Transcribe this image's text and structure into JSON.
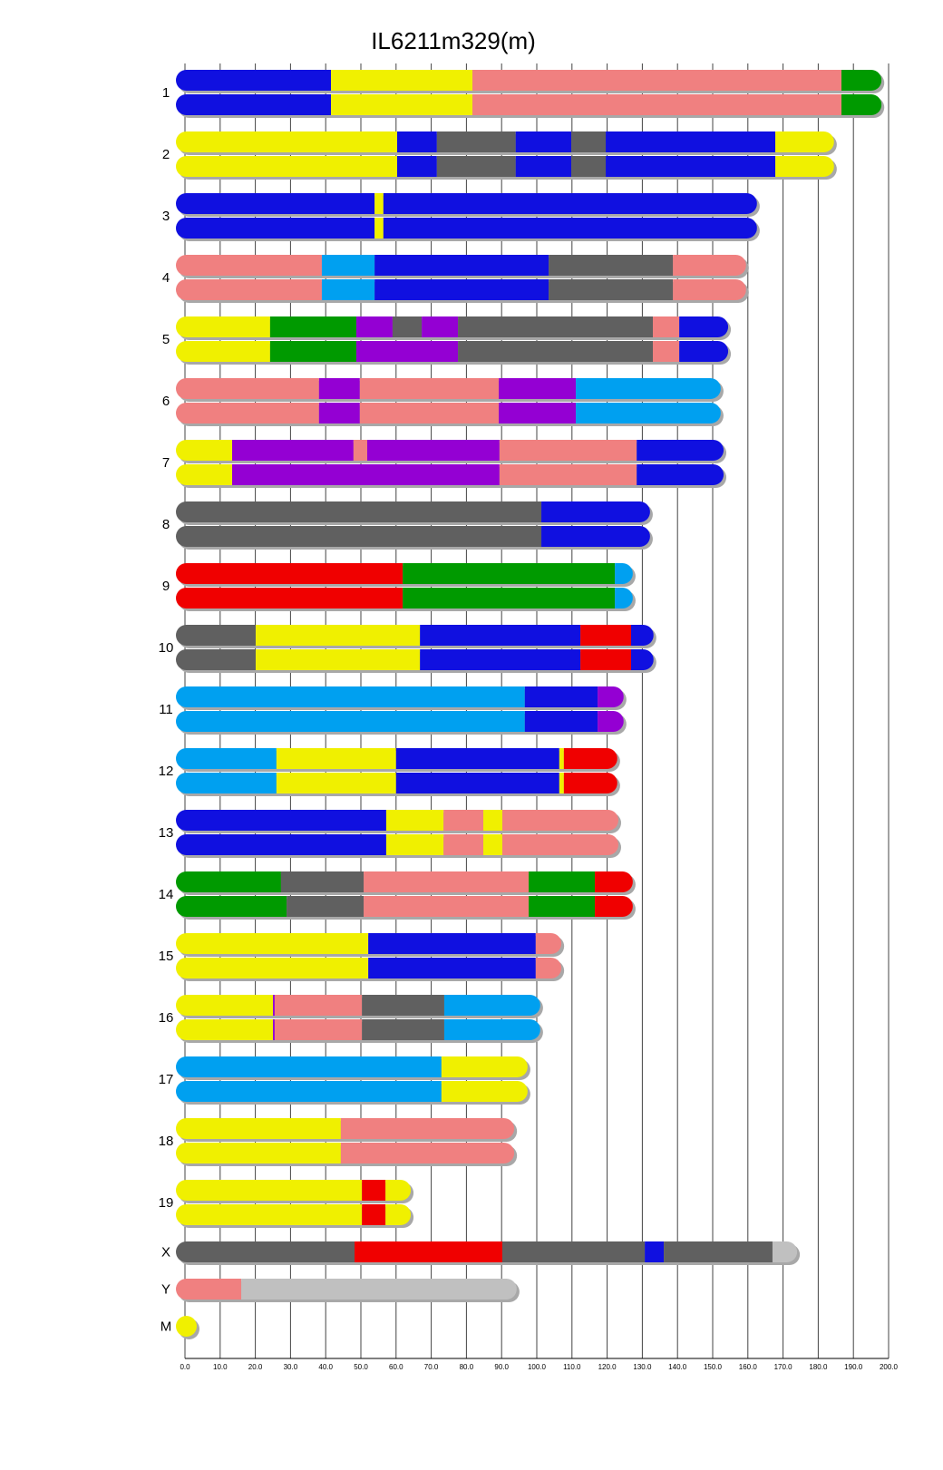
{
  "chart_data": {
    "type": "chromosome-painting",
    "title": "IL6211m329(m)",
    "xlim": [
      0,
      200
    ],
    "xticks": [
      {
        "value": 0,
        "label": "0.0"
      },
      {
        "value": 10,
        "label": "10.0"
      },
      {
        "value": 20,
        "label": "20.0"
      },
      {
        "value": 30,
        "label": "30.0"
      },
      {
        "value": 40,
        "label": "40.0"
      },
      {
        "value": 50,
        "label": "50.0"
      },
      {
        "value": 60,
        "label": "60.0"
      },
      {
        "value": 70,
        "label": "70.0"
      },
      {
        "value": 80,
        "label": "80.0"
      },
      {
        "value": 90,
        "label": "90.0"
      },
      {
        "value": 100,
        "label": "100.0"
      },
      {
        "value": 110,
        "label": "110.0"
      },
      {
        "value": 120,
        "label": "120.0"
      },
      {
        "value": 130,
        "label": "130.0"
      },
      {
        "value": 140,
        "label": "140.0"
      },
      {
        "value": 150,
        "label": "150.0"
      },
      {
        "value": 160,
        "label": "160.0"
      },
      {
        "value": 170,
        "label": "170.0"
      },
      {
        "value": 180,
        "label": "180.0"
      },
      {
        "value": 190,
        "label": "190.0"
      },
      {
        "value": 200,
        "label": "200.0"
      }
    ],
    "grid": true,
    "chromosomes": [
      {
        "name": "1",
        "haplotypes": [
          [
            [
              0,
              41.5,
              "#1010e0"
            ],
            [
              41.5,
              81.7,
              "#f0f000"
            ],
            [
              81.7,
              186.6,
              "#f08080"
            ],
            [
              186.6,
              198,
              "#009a00"
            ]
          ],
          [
            [
              0,
              41.5,
              "#1010e0"
            ],
            [
              41.5,
              81.7,
              "#f0f000"
            ],
            [
              81.7,
              186.6,
              "#f08080"
            ],
            [
              186.6,
              198,
              "#009a00"
            ]
          ]
        ]
      },
      {
        "name": "2",
        "haplotypes": [
          [
            [
              0,
              60.3,
              "#f0f000"
            ],
            [
              60.3,
              71.6,
              "#1010e0"
            ],
            [
              71.6,
              94,
              "#606060"
            ],
            [
              94,
              109.8,
              "#1010e0"
            ],
            [
              109.8,
              119.6,
              "#606060"
            ],
            [
              119.6,
              167.8,
              "#1010e0"
            ],
            [
              167.8,
              184.5,
              "#f0f000"
            ]
          ],
          [
            [
              0,
              60.3,
              "#f0f000"
            ],
            [
              60.3,
              71.6,
              "#1010e0"
            ],
            [
              71.6,
              94,
              "#606060"
            ],
            [
              94,
              109.8,
              "#1010e0"
            ],
            [
              109.8,
              119.6,
              "#606060"
            ],
            [
              119.6,
              167.8,
              "#1010e0"
            ],
            [
              167.8,
              184.5,
              "#f0f000"
            ]
          ]
        ]
      },
      {
        "name": "3",
        "haplotypes": [
          [
            [
              0,
              53.9,
              "#1010e0"
            ],
            [
              53.9,
              56.4,
              "#f0f000"
            ],
            [
              56.4,
              162.6,
              "#1010e0"
            ]
          ],
          [
            [
              0,
              53.9,
              "#1010e0"
            ],
            [
              53.9,
              56.4,
              "#f0f000"
            ],
            [
              56.4,
              162.6,
              "#1010e0"
            ]
          ]
        ]
      },
      {
        "name": "4",
        "haplotypes": [
          [
            [
              0,
              38.9,
              "#f08080"
            ],
            [
              38.9,
              53.9,
              "#00a0f0"
            ],
            [
              53.9,
              103.4,
              "#1010e0"
            ],
            [
              103.4,
              138.7,
              "#606060"
            ],
            [
              138.7,
              159.5,
              "#f08080"
            ]
          ],
          [
            [
              0,
              38.9,
              "#f08080"
            ],
            [
              38.9,
              53.9,
              "#00a0f0"
            ],
            [
              53.9,
              103.4,
              "#1010e0"
            ],
            [
              103.4,
              138.7,
              "#606060"
            ],
            [
              138.7,
              159.5,
              "#f08080"
            ]
          ]
        ]
      },
      {
        "name": "5",
        "haplotypes": [
          [
            [
              0,
              24.2,
              "#f0f000"
            ],
            [
              24.2,
              48.7,
              "#009a00"
            ],
            [
              48.7,
              59,
              "#9400d3"
            ],
            [
              59,
              67.3,
              "#606060"
            ],
            [
              67.3,
              77.6,
              "#9400d3"
            ],
            [
              77.6,
              133,
              "#606060"
            ],
            [
              133,
              140.5,
              "#f08080"
            ],
            [
              140.5,
              154.4,
              "#1010e0"
            ]
          ],
          [
            [
              0,
              24.2,
              "#f0f000"
            ],
            [
              24.2,
              48.7,
              "#009a00"
            ],
            [
              48.7,
              77.6,
              "#9400d3"
            ],
            [
              77.6,
              133,
              "#606060"
            ],
            [
              133,
              140.5,
              "#f08080"
            ],
            [
              140.5,
              154.4,
              "#1010e0"
            ]
          ]
        ]
      },
      {
        "name": "6",
        "haplotypes": [
          [
            [
              0,
              38.1,
              "#f08080"
            ],
            [
              38.1,
              49.7,
              "#9400d3"
            ],
            [
              49.7,
              89.2,
              "#f08080"
            ],
            [
              89.2,
              111.1,
              "#9400d3"
            ],
            [
              111.1,
              152.3,
              "#00a0f0"
            ]
          ],
          [
            [
              0,
              38.1,
              "#f08080"
            ],
            [
              38.1,
              49.7,
              "#9400d3"
            ],
            [
              49.7,
              89.2,
              "#f08080"
            ],
            [
              89.2,
              111.1,
              "#9400d3"
            ],
            [
              111.1,
              152.3,
              "#00a0f0"
            ]
          ]
        ]
      },
      {
        "name": "7",
        "haplotypes": [
          [
            [
              0,
              13.4,
              "#f0f000"
            ],
            [
              13.4,
              47.9,
              "#9400d3"
            ],
            [
              47.9,
              51.8,
              "#f08080"
            ],
            [
              51.8,
              89.4,
              "#9400d3"
            ],
            [
              89.4,
              128.4,
              "#f08080"
            ],
            [
              128.4,
              153.1,
              "#1010e0"
            ]
          ],
          [
            [
              0,
              13.4,
              "#f0f000"
            ],
            [
              13.4,
              89.4,
              "#9400d3"
            ],
            [
              89.4,
              128.4,
              "#f08080"
            ],
            [
              128.4,
              153.1,
              "#1010e0"
            ]
          ]
        ]
      },
      {
        "name": "8",
        "haplotypes": [
          [
            [
              0,
              101.3,
              "#606060"
            ],
            [
              101.3,
              132.2,
              "#1010e0"
            ]
          ],
          [
            [
              0,
              101.3,
              "#606060"
            ],
            [
              101.3,
              132.2,
              "#1010e0"
            ]
          ]
        ]
      },
      {
        "name": "9",
        "haplotypes": [
          [
            [
              0,
              61.9,
              "#f00000"
            ],
            [
              61.9,
              122.2,
              "#009a00"
            ],
            [
              122.2,
              127.3,
              "#00a0f0"
            ]
          ],
          [
            [
              0,
              61.9,
              "#f00000"
            ],
            [
              61.9,
              122.2,
              "#009a00"
            ],
            [
              122.2,
              127.3,
              "#00a0f0"
            ]
          ]
        ]
      },
      {
        "name": "10",
        "haplotypes": [
          [
            [
              0,
              20.1,
              "#606060"
            ],
            [
              20.1,
              66.8,
              "#f0f000"
            ],
            [
              66.8,
              112.4,
              "#1010e0"
            ],
            [
              112.4,
              126.8,
              "#f00000"
            ],
            [
              126.8,
              133.2,
              "#1010e0"
            ]
          ],
          [
            [
              0,
              20.1,
              "#606060"
            ],
            [
              20.1,
              66.8,
              "#f0f000"
            ],
            [
              66.8,
              112.4,
              "#1010e0"
            ],
            [
              112.4,
              126.8,
              "#f00000"
            ],
            [
              126.8,
              133.2,
              "#1010e0"
            ]
          ]
        ]
      },
      {
        "name": "11",
        "haplotypes": [
          [
            [
              0,
              96.6,
              "#00a0f0"
            ],
            [
              96.6,
              117.3,
              "#1010e0"
            ],
            [
              117.3,
              124.7,
              "#9400d3"
            ]
          ],
          [
            [
              0,
              96.6,
              "#00a0f0"
            ],
            [
              96.6,
              117.3,
              "#1010e0"
            ],
            [
              117.3,
              124.7,
              "#9400d3"
            ]
          ]
        ]
      },
      {
        "name": "12",
        "haplotypes": [
          [
            [
              0,
              26,
              "#00a0f0"
            ],
            [
              26,
              60,
              "#f0f000"
            ],
            [
              60,
              106.4,
              "#1010e0"
            ],
            [
              106.4,
              107.7,
              "#f0f000"
            ],
            [
              107.7,
              122.9,
              "#f00000"
            ]
          ],
          [
            [
              0,
              26,
              "#00a0f0"
            ],
            [
              26,
              60,
              "#f0f000"
            ],
            [
              60,
              106.4,
              "#1010e0"
            ],
            [
              106.4,
              107.7,
              "#f0f000"
            ],
            [
              107.7,
              122.9,
              "#f00000"
            ]
          ]
        ]
      },
      {
        "name": "13",
        "haplotypes": [
          [
            [
              0,
              57.2,
              "#1010e0"
            ],
            [
              57.2,
              73.5,
              "#f0f000"
            ],
            [
              73.5,
              84.8,
              "#f08080"
            ],
            [
              84.8,
              90.2,
              "#f0f000"
            ],
            [
              90.2,
              123.2,
              "#f08080"
            ]
          ],
          [
            [
              0,
              57.2,
              "#1010e0"
            ],
            [
              57.2,
              73.5,
              "#f0f000"
            ],
            [
              73.5,
              84.8,
              "#f08080"
            ],
            [
              84.8,
              90.2,
              "#f0f000"
            ],
            [
              90.2,
              123.2,
              "#f08080"
            ]
          ]
        ]
      },
      {
        "name": "14",
        "haplotypes": [
          [
            [
              0,
              27.3,
              "#009a00"
            ],
            [
              27.3,
              50.8,
              "#606060"
            ],
            [
              50.8,
              97.7,
              "#f08080"
            ],
            [
              97.7,
              116.5,
              "#009a00"
            ],
            [
              116.5,
              127.3,
              "#f00000"
            ]
          ],
          [
            [
              0,
              28.9,
              "#009a00"
            ],
            [
              28.9,
              50.8,
              "#606060"
            ],
            [
              50.8,
              97.7,
              "#f08080"
            ],
            [
              97.7,
              116.5,
              "#009a00"
            ],
            [
              116.5,
              127.3,
              "#f00000"
            ]
          ]
        ]
      },
      {
        "name": "15",
        "haplotypes": [
          [
            [
              0,
              52.1,
              "#f0f000"
            ],
            [
              52.1,
              99.7,
              "#1010e0"
            ],
            [
              99.7,
              107,
              "#f08080"
            ]
          ],
          [
            [
              0,
              52.1,
              "#f0f000"
            ],
            [
              52.1,
              99.7,
              "#1010e0"
            ],
            [
              99.7,
              107,
              "#f08080"
            ]
          ]
        ]
      },
      {
        "name": "16",
        "haplotypes": [
          [
            [
              0,
              25,
              "#f0f000"
            ],
            [
              25,
              25.5,
              "#9400d3"
            ],
            [
              25.5,
              50.3,
              "#f08080"
            ],
            [
              50.3,
              73.7,
              "#606060"
            ],
            [
              73.7,
              101,
              "#00a0f0"
            ]
          ],
          [
            [
              0,
              25,
              "#f0f000"
            ],
            [
              25,
              25.5,
              "#9400d3"
            ],
            [
              25.5,
              50.3,
              "#f08080"
            ],
            [
              50.3,
              73.7,
              "#606060"
            ],
            [
              73.7,
              101,
              "#00a0f0"
            ]
          ]
        ]
      },
      {
        "name": "17",
        "haplotypes": [
          [
            [
              0,
              72.9,
              "#00a0f0"
            ],
            [
              72.9,
              97.4,
              "#f0f000"
            ]
          ],
          [
            [
              0,
              72.9,
              "#00a0f0"
            ],
            [
              72.9,
              97.4,
              "#f0f000"
            ]
          ]
        ]
      },
      {
        "name": "18",
        "haplotypes": [
          [
            [
              0,
              44.3,
              "#f0f000"
            ],
            [
              44.3,
              93.6,
              "#f08080"
            ]
          ],
          [
            [
              0,
              44.3,
              "#f0f000"
            ],
            [
              44.3,
              93.6,
              "#f08080"
            ]
          ]
        ]
      },
      {
        "name": "19",
        "haplotypes": [
          [
            [
              0,
              50.3,
              "#f0f000"
            ],
            [
              50.3,
              57,
              "#f00000"
            ],
            [
              57,
              64.2,
              "#f0f000"
            ]
          ],
          [
            [
              0,
              50.3,
              "#f0f000"
            ],
            [
              50.3,
              57,
              "#f00000"
            ],
            [
              57,
              64.2,
              "#f0f000"
            ]
          ]
        ]
      },
      {
        "name": "X",
        "haplotypes": [
          [
            [
              0,
              48.2,
              "#606060"
            ],
            [
              48.2,
              90.2,
              "#f00000"
            ],
            [
              90.2,
              130.7,
              "#606060"
            ],
            [
              130.7,
              136.1,
              "#1010e0"
            ],
            [
              136.1,
              167,
              "#606060"
            ],
            [
              167,
              174,
              "#c0c0c0"
            ]
          ]
        ]
      },
      {
        "name": "Y",
        "haplotypes": [
          [
            [
              0,
              16,
              "#f08080"
            ],
            [
              16,
              94.3,
              "#c0c0c0"
            ]
          ]
        ]
      },
      {
        "name": "M",
        "haplotypes": [
          [
            [
              0,
              0.016,
              "#f0f000"
            ]
          ]
        ]
      }
    ]
  }
}
